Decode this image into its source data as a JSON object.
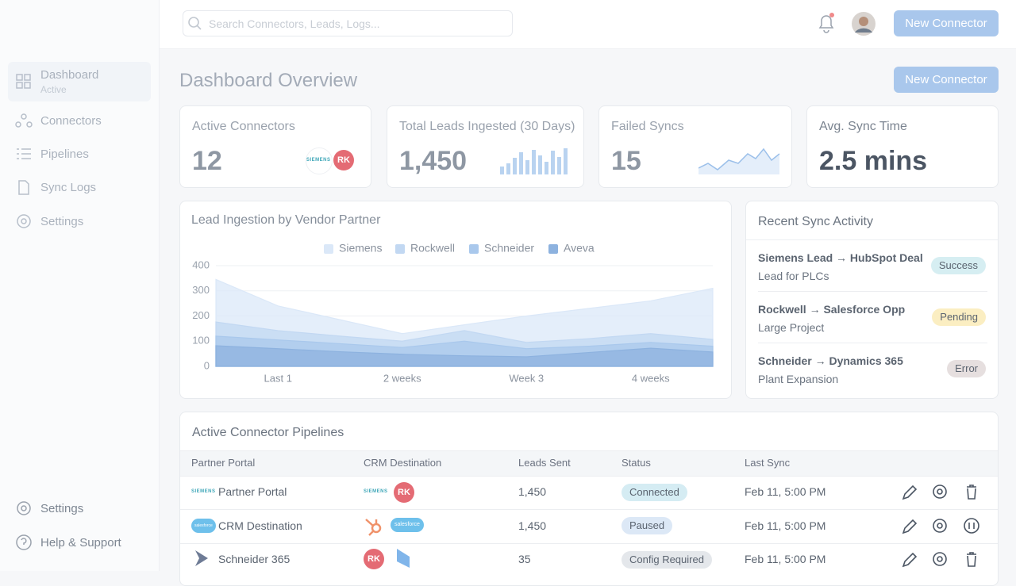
{
  "header": {
    "search_placeholder": "Search Connectors, Leads, Logs...",
    "button": "New Connector"
  },
  "sidebar": {
    "nav": [
      {
        "label": "Dashboard",
        "sub": "Active"
      },
      {
        "label": "Connectors"
      },
      {
        "label": "Pipelines"
      },
      {
        "label": "Sync Logs"
      },
      {
        "label": "Settings"
      }
    ],
    "footer": [
      "Settings",
      "Help & Support"
    ]
  },
  "page": {
    "title": "Dashboard Overview",
    "button": "New Connector"
  },
  "kpis": [
    {
      "label": "Active Connectors",
      "value": "12",
      "logos": [
        "SIEMENS",
        "RK"
      ]
    },
    {
      "label": "Total Leads Ingested (30 Days)",
      "value": "1,450"
    },
    {
      "label": "Failed Syncs",
      "value": "15"
    },
    {
      "label": "Avg. Sync Time",
      "value": "2.5 mins"
    }
  ],
  "chart_data": {
    "type": "area",
    "title": "Lead Ingestion by Vendor Partner",
    "categories": [
      null,
      "Last 1",
      null,
      "2 weeks",
      null,
      "Week 3",
      null,
      "4 weeks",
      null
    ],
    "series": [
      {
        "name": "Siemens",
        "color": "#dbe8f8",
        "values": [
          345,
          240,
          185,
          130,
          165,
          200,
          230,
          260,
          310
        ]
      },
      {
        "name": "Rockwell",
        "color": "#c2d8f2",
        "values": [
          176,
          142,
          120,
          100,
          142,
          95,
          110,
          130,
          107
        ]
      },
      {
        "name": "Schneider",
        "color": "#a9c8ec",
        "values": [
          120,
          105,
          90,
          75,
          100,
          70,
          80,
          95,
          80
        ]
      },
      {
        "name": "Aveva",
        "color": "#8db2df",
        "values": [
          82,
          70,
          58,
          48,
          42,
          38,
          55,
          72,
          57
        ]
      }
    ],
    "ylim": [
      0,
      400
    ],
    "yticks": [
      0,
      100,
      200,
      300,
      400
    ],
    "grid": true
  },
  "activity": {
    "title": "Recent Sync Activity",
    "items": [
      {
        "title": "Siemens Lead → HubSpot Deal",
        "subtitle": "Lead for PLCs",
        "status": "Success"
      },
      {
        "title": "Rockwell → Salesforce Opp",
        "subtitle": "Large Project",
        "status": "Pending"
      },
      {
        "title": "Schneider → Dynamics 365",
        "subtitle": "Plant Expansion",
        "status": "Error"
      }
    ]
  },
  "table": {
    "title": "Active Connector Pipelines",
    "columns": [
      "Partner Portal",
      "CRM Destination",
      "Leads Sent",
      "Status",
      "Last Sync"
    ],
    "rows": [
      {
        "portal_logo": "SIEMENS",
        "portal": "Partner Portal",
        "crm_logos": [
          "SIEMENS",
          "RK"
        ],
        "leads": "1,450",
        "status": "Connected",
        "last_sync": "Feb 11, 5:00 PM"
      },
      {
        "portal_logo": "salesforce",
        "portal": "CRM Destination",
        "crm_logos": [
          "salesforce"
        ],
        "leads": "1,450",
        "status": "Paused",
        "last_sync": "Feb 11, 5:00 PM"
      },
      {
        "portal": "Schneider 365",
        "crm_logos": [
          "RK"
        ],
        "leads": "35",
        "status": "Config Required",
        "last_sync": "Feb 11, 5:00 PM"
      }
    ]
  }
}
